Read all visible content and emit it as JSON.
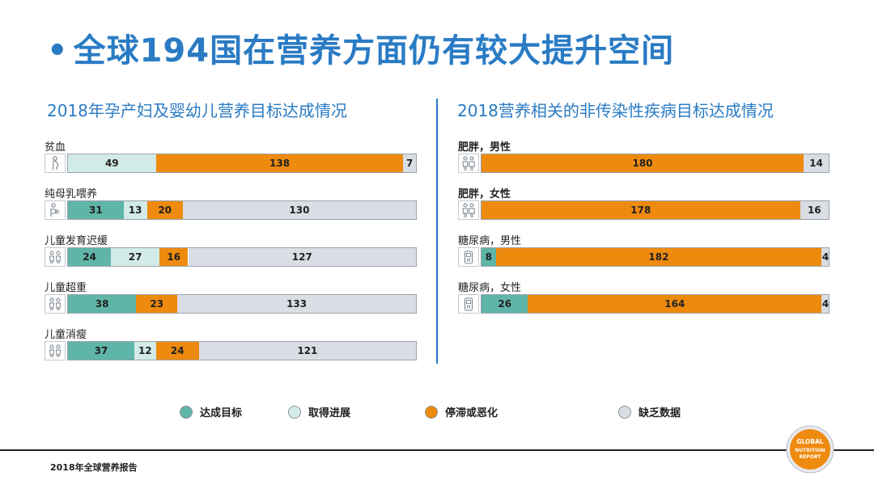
{
  "slide": {
    "bullet": "•",
    "title": "全球194国在营养方面仍有较大提升空间"
  },
  "colors": {
    "achieved": "#5fb5a8",
    "progress": "#d3ebe6",
    "stalled": "#ee8a0e",
    "no_data": "#d9dee4",
    "accent": "#2a7bc4"
  },
  "legend": [
    {
      "key": "achieved",
      "label": "达成目标"
    },
    {
      "key": "progress",
      "label": "取得进展"
    },
    {
      "key": "stalled",
      "label": "停滞或恶化"
    },
    {
      "key": "no_data",
      "label": "缺乏数据"
    }
  ],
  "chart_data": [
    {
      "type": "bar",
      "orientation": "horizontal-stacked",
      "title": "2018年孕产妇及婴幼儿营养目标达成情况",
      "total": 194,
      "series_keys": [
        "achieved",
        "progress",
        "stalled",
        "no_data"
      ],
      "rows": [
        {
          "label": "贫血",
          "icon": "pregnant-woman-icon",
          "bold": false,
          "values": [
            0,
            49,
            138,
            7
          ]
        },
        {
          "label": "纯母乳喂养",
          "icon": "breastfeeding-icon",
          "bold": false,
          "values": [
            31,
            13,
            20,
            130
          ]
        },
        {
          "label": "儿童发育迟缓",
          "icon": "children-icon",
          "bold": false,
          "values": [
            24,
            27,
            16,
            127
          ]
        },
        {
          "label": "儿童超重",
          "icon": "children-icon",
          "bold": false,
          "values": [
            38,
            0,
            23,
            133
          ]
        },
        {
          "label": "儿童消瘦",
          "icon": "children-icon",
          "bold": false,
          "values": [
            37,
            12,
            24,
            121
          ]
        }
      ]
    },
    {
      "type": "bar",
      "orientation": "horizontal-stacked",
      "title": "2018营养相关的非传染性疾病目标达成情况",
      "total": 194,
      "series_keys": [
        "achieved",
        "progress",
        "stalled",
        "no_data"
      ],
      "rows": [
        {
          "label": "肥胖，男性",
          "icon": "adults-icon",
          "bold": true,
          "values": [
            0,
            0,
            180,
            14
          ]
        },
        {
          "label": "肥胖，女性",
          "icon": "adults-icon",
          "bold": true,
          "values": [
            0,
            0,
            178,
            16
          ]
        },
        {
          "label": "糖尿病，男性",
          "icon": "glucose-meter-icon",
          "bold": false,
          "values": [
            8,
            0,
            182,
            4
          ]
        },
        {
          "label": "糖尿病，女性",
          "icon": "glucose-meter-icon",
          "bold": false,
          "values": [
            26,
            0,
            164,
            4
          ]
        }
      ]
    }
  ],
  "footer": {
    "source": "2018年全球营养报告"
  },
  "logo": {
    "line1": "GLOBAL",
    "line2": "NUTRITION",
    "line3": "REPORT"
  }
}
